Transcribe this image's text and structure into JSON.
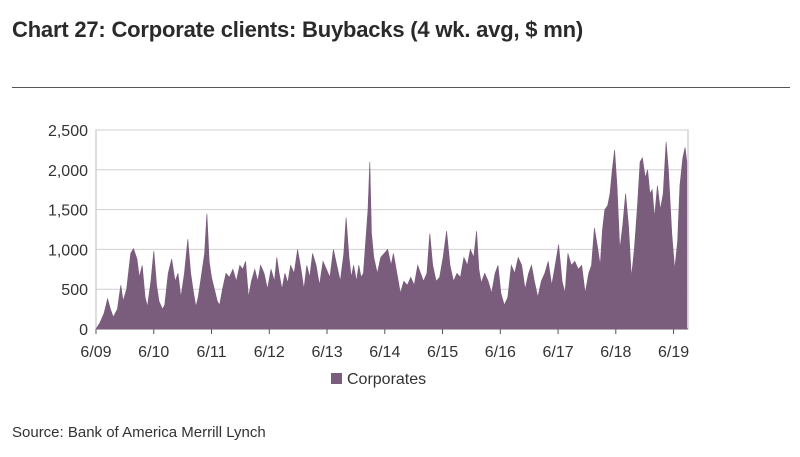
{
  "chart_data": {
    "type": "area",
    "title": "Chart 27: Corporate clients: Buybacks (4 wk. avg, $ mn)",
    "xlabel": "",
    "ylabel": "",
    "ylim": [
      0,
      2500
    ],
    "xlim": [
      2009.33,
      2019.58
    ],
    "y_ticks": [
      0,
      500,
      1000,
      1500,
      2000,
      2500
    ],
    "y_tick_labels": [
      "0",
      "500",
      "1,000",
      "1,500",
      "2,000",
      "2,500"
    ],
    "x_ticks": [
      2009.33,
      2010.33,
      2011.33,
      2012.33,
      2013.33,
      2014.33,
      2015.33,
      2016.33,
      2017.33,
      2018.33,
      2019.33
    ],
    "x_tick_labels": [
      "6/09",
      "6/10",
      "6/11",
      "6/12",
      "6/13",
      "6/14",
      "6/15",
      "6/16",
      "6/17",
      "6/18",
      "6/19"
    ],
    "legend": {
      "position": "bottom-center"
    },
    "series": [
      {
        "name": "Corporates",
        "color": "#7a5c7c",
        "points": [
          [
            2009.33,
            0
          ],
          [
            2009.4,
            80
          ],
          [
            2009.47,
            200
          ],
          [
            2009.53,
            380
          ],
          [
            2009.58,
            250
          ],
          [
            2009.63,
            150
          ],
          [
            2009.7,
            250
          ],
          [
            2009.76,
            550
          ],
          [
            2009.8,
            350
          ],
          [
            2009.86,
            500
          ],
          [
            2009.93,
            950
          ],
          [
            2009.98,
            1010
          ],
          [
            2010.04,
            880
          ],
          [
            2010.08,
            650
          ],
          [
            2010.13,
            800
          ],
          [
            2010.18,
            400
          ],
          [
            2010.22,
            280
          ],
          [
            2010.28,
            600
          ],
          [
            2010.33,
            980
          ],
          [
            2010.38,
            550
          ],
          [
            2010.42,
            350
          ],
          [
            2010.48,
            250
          ],
          [
            2010.52,
            300
          ],
          [
            2010.58,
            700
          ],
          [
            2010.64,
            880
          ],
          [
            2010.7,
            600
          ],
          [
            2010.75,
            700
          ],
          [
            2010.8,
            400
          ],
          [
            2010.86,
            700
          ],
          [
            2010.92,
            1130
          ],
          [
            2010.97,
            700
          ],
          [
            2011.02,
            450
          ],
          [
            2011.06,
            280
          ],
          [
            2011.1,
            400
          ],
          [
            2011.16,
            700
          ],
          [
            2011.21,
            950
          ],
          [
            2011.25,
            1450
          ],
          [
            2011.29,
            850
          ],
          [
            2011.33,
            650
          ],
          [
            2011.38,
            500
          ],
          [
            2011.43,
            350
          ],
          [
            2011.47,
            300
          ],
          [
            2011.52,
            500
          ],
          [
            2011.58,
            700
          ],
          [
            2011.64,
            650
          ],
          [
            2011.7,
            750
          ],
          [
            2011.76,
            600
          ],
          [
            2011.82,
            800
          ],
          [
            2011.87,
            750
          ],
          [
            2011.92,
            850
          ],
          [
            2011.97,
            400
          ],
          [
            2012.02,
            600
          ],
          [
            2012.08,
            750
          ],
          [
            2012.13,
            600
          ],
          [
            2012.18,
            800
          ],
          [
            2012.24,
            700
          ],
          [
            2012.3,
            500
          ],
          [
            2012.36,
            750
          ],
          [
            2012.42,
            600
          ],
          [
            2012.46,
            900
          ],
          [
            2012.5,
            700
          ],
          [
            2012.55,
            500
          ],
          [
            2012.6,
            700
          ],
          [
            2012.65,
            580
          ],
          [
            2012.7,
            800
          ],
          [
            2012.76,
            700
          ],
          [
            2012.82,
            1000
          ],
          [
            2012.88,
            750
          ],
          [
            2012.93,
            500
          ],
          [
            2012.98,
            800
          ],
          [
            2013.03,
            650
          ],
          [
            2013.08,
            950
          ],
          [
            2013.14,
            800
          ],
          [
            2013.2,
            550
          ],
          [
            2013.26,
            850
          ],
          [
            2013.32,
            750
          ],
          [
            2013.38,
            650
          ],
          [
            2013.44,
            1000
          ],
          [
            2013.5,
            800
          ],
          [
            2013.56,
            600
          ],
          [
            2013.62,
            950
          ],
          [
            2013.66,
            1400
          ],
          [
            2013.71,
            900
          ],
          [
            2013.75,
            650
          ],
          [
            2013.79,
            800
          ],
          [
            2013.84,
            600
          ],
          [
            2013.88,
            800
          ],
          [
            2013.92,
            650
          ],
          [
            2013.96,
            700
          ],
          [
            2014.0,
            1100
          ],
          [
            2014.04,
            1500
          ],
          [
            2014.07,
            2100
          ],
          [
            2014.1,
            1200
          ],
          [
            2014.14,
            900
          ],
          [
            2014.2,
            700
          ],
          [
            2014.26,
            900
          ],
          [
            2014.32,
            950
          ],
          [
            2014.38,
            1000
          ],
          [
            2014.44,
            800
          ],
          [
            2014.48,
            950
          ],
          [
            2014.54,
            700
          ],
          [
            2014.6,
            450
          ],
          [
            2014.66,
            600
          ],
          [
            2014.72,
            550
          ],
          [
            2014.78,
            650
          ],
          [
            2014.84,
            550
          ],
          [
            2014.9,
            800
          ],
          [
            2014.95,
            700
          ],
          [
            2015.0,
            600
          ],
          [
            2015.06,
            700
          ],
          [
            2015.11,
            1200
          ],
          [
            2015.16,
            800
          ],
          [
            2015.22,
            600
          ],
          [
            2015.28,
            650
          ],
          [
            2015.34,
            900
          ],
          [
            2015.4,
            1230
          ],
          [
            2015.46,
            800
          ],
          [
            2015.52,
            600
          ],
          [
            2015.58,
            700
          ],
          [
            2015.64,
            650
          ],
          [
            2015.7,
            900
          ],
          [
            2015.76,
            800
          ],
          [
            2015.81,
            1000
          ],
          [
            2015.87,
            900
          ],
          [
            2015.92,
            1230
          ],
          [
            2015.96,
            750
          ],
          [
            2016.0,
            580
          ],
          [
            2016.06,
            700
          ],
          [
            2016.12,
            600
          ],
          [
            2016.18,
            450
          ],
          [
            2016.24,
            700
          ],
          [
            2016.29,
            800
          ],
          [
            2016.34,
            450
          ],
          [
            2016.4,
            300
          ],
          [
            2016.46,
            400
          ],
          [
            2016.52,
            800
          ],
          [
            2016.58,
            700
          ],
          [
            2016.64,
            900
          ],
          [
            2016.7,
            800
          ],
          [
            2016.76,
            500
          ],
          [
            2016.82,
            700
          ],
          [
            2016.87,
            800
          ],
          [
            2016.92,
            600
          ],
          [
            2016.98,
            400
          ],
          [
            2017.04,
            600
          ],
          [
            2017.1,
            700
          ],
          [
            2017.16,
            850
          ],
          [
            2017.22,
            550
          ],
          [
            2017.28,
            800
          ],
          [
            2017.34,
            1060
          ],
          [
            2017.4,
            600
          ],
          [
            2017.45,
            450
          ],
          [
            2017.5,
            950
          ],
          [
            2017.56,
            800
          ],
          [
            2017.62,
            850
          ],
          [
            2017.68,
            750
          ],
          [
            2017.74,
            800
          ],
          [
            2017.8,
            450
          ],
          [
            2017.86,
            700
          ],
          [
            2017.91,
            800
          ],
          [
            2017.96,
            1270
          ],
          [
            2018.02,
            1000
          ],
          [
            2018.06,
            800
          ],
          [
            2018.1,
            1250
          ],
          [
            2018.14,
            1500
          ],
          [
            2018.19,
            1550
          ],
          [
            2018.23,
            1700
          ],
          [
            2018.27,
            2000
          ],
          [
            2018.31,
            2250
          ],
          [
            2018.35,
            1800
          ],
          [
            2018.4,
            1000
          ],
          [
            2018.45,
            1300
          ],
          [
            2018.5,
            1700
          ],
          [
            2018.55,
            1300
          ],
          [
            2018.6,
            650
          ],
          [
            2018.65,
            1000
          ],
          [
            2018.7,
            1500
          ],
          [
            2018.75,
            2100
          ],
          [
            2018.79,
            2150
          ],
          [
            2018.84,
            1900
          ],
          [
            2018.88,
            2000
          ],
          [
            2018.92,
            1700
          ],
          [
            2018.96,
            1750
          ],
          [
            2019.0,
            1400
          ],
          [
            2019.05,
            1800
          ],
          [
            2019.1,
            1500
          ],
          [
            2019.15,
            1700
          ],
          [
            2019.2,
            2350
          ],
          [
            2019.24,
            2000
          ],
          [
            2019.3,
            1200
          ],
          [
            2019.35,
            750
          ],
          [
            2019.4,
            1100
          ],
          [
            2019.44,
            1800
          ],
          [
            2019.49,
            2150
          ],
          [
            2019.53,
            2280
          ],
          [
            2019.56,
            2100
          ]
        ]
      }
    ]
  },
  "source": "Source: Bank of America Merrill Lynch"
}
